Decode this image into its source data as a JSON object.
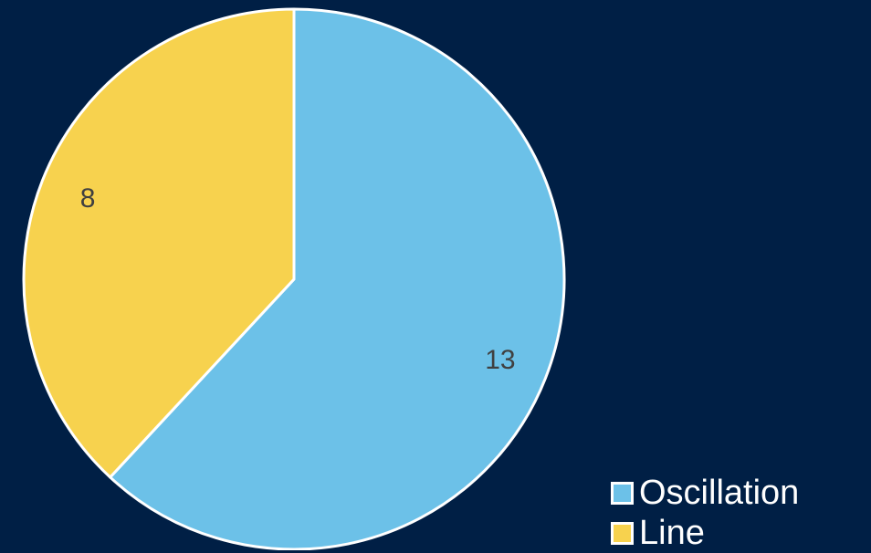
{
  "chart_data": {
    "type": "pie",
    "title": "",
    "categories": [
      "Oscillation",
      "Line"
    ],
    "values": [
      13,
      8
    ],
    "data_labels": [
      "13",
      "8"
    ],
    "colors": [
      "#6cc1e8",
      "#f7d24e"
    ],
    "slice_border_color": "#ffffff",
    "start_angle_deg": 0,
    "direction": "clockwise",
    "legend_placement": "bottom-right"
  },
  "theme": {
    "background": "#001f45",
    "legend_text_color": "#ffffff",
    "data_label_color": "#404040"
  }
}
